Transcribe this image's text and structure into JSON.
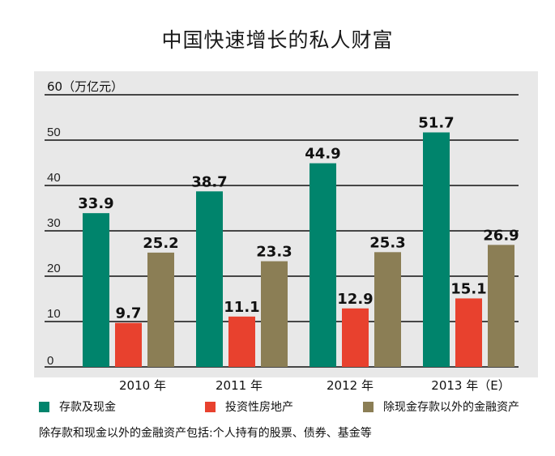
{
  "title": "中国快速增长的私人财富",
  "chart_data": {
    "type": "bar",
    "unit_label": "60（万亿元）",
    "y_ticks": [
      "",
      "10",
      "20",
      "30",
      "40",
      "50"
    ],
    "ylim": [
      0,
      60
    ],
    "categories": [
      "2010 年",
      "2011 年",
      "2012 年",
      "2013 年（E）"
    ],
    "series": [
      {
        "name": "存款及现金",
        "color": "#00846c",
        "values": [
          33.9,
          38.7,
          44.9,
          51.7
        ],
        "labels": [
          "33.9",
          "38.7",
          "44.9",
          "51.7"
        ]
      },
      {
        "name": "投资性房地产",
        "color": "#e8412e",
        "values": [
          9.7,
          11.1,
          12.9,
          15.1
        ],
        "labels": [
          "9.7",
          "11.1",
          "12.9",
          "15.1"
        ]
      },
      {
        "name": "除现金存款以外的金融资产",
        "color": "#8b7e55",
        "values": [
          25.2,
          23.3,
          25.3,
          26.9
        ],
        "labels": [
          "25.2",
          "23.3",
          "25.3",
          "26.9"
        ]
      }
    ],
    "grid": true,
    "legend_position": "bottom"
  },
  "zero_tick": "0",
  "note": "除存款和现金以外的金融资产包括:个人持有的股票、债券、基金等"
}
